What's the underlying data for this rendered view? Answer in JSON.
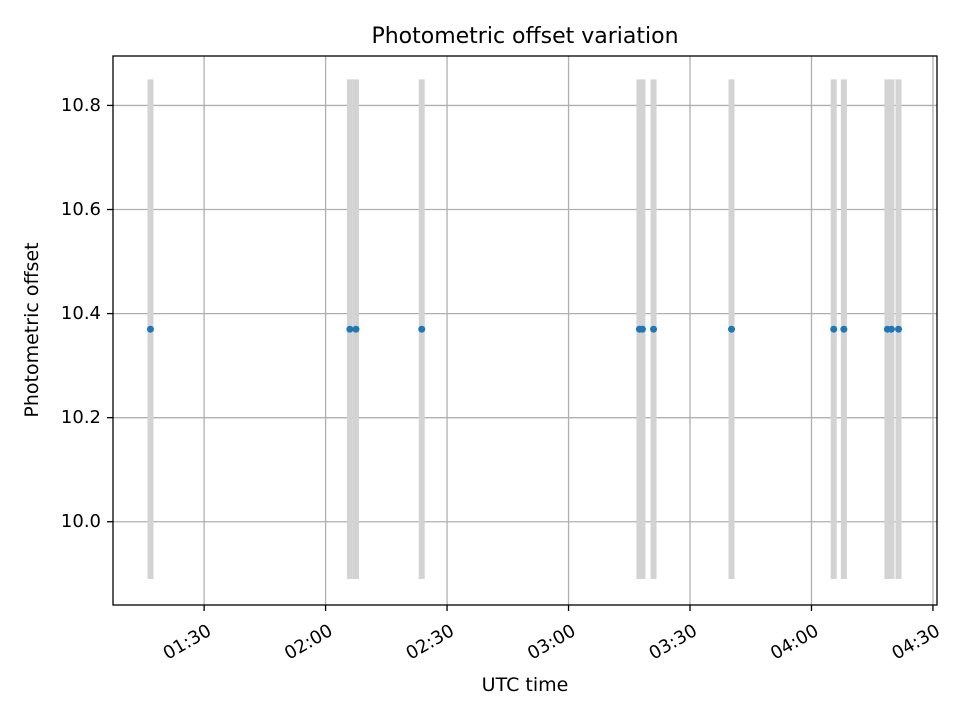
{
  "chart_data": {
    "type": "scatter",
    "title": "Photometric offset variation",
    "xlabel": "UTC time",
    "ylabel": "Photometric offset",
    "x_tick_labels": [
      "01:30",
      "02:00",
      "02:30",
      "03:00",
      "03:30",
      "04:00",
      "04:30"
    ],
    "y_tick_labels": [
      "10.0",
      "10.2",
      "10.4",
      "10.6",
      "10.8"
    ],
    "xlim": [
      "01:07:30",
      "04:31:00"
    ],
    "ylim": [
      9.84,
      10.895
    ],
    "grid": true,
    "error_bar_color": "#d3d3d3",
    "point_color": "#1f77b4",
    "points": [
      {
        "x": "01:16:45",
        "y": 10.37,
        "ylow": 9.89,
        "yhigh": 10.85
      },
      {
        "x": "02:06:00",
        "y": 10.37,
        "ylow": 9.89,
        "yhigh": 10.85
      },
      {
        "x": "02:07:30",
        "y": 10.37,
        "ylow": 9.89,
        "yhigh": 10.85
      },
      {
        "x": "02:23:45",
        "y": 10.37,
        "ylow": 9.89,
        "yhigh": 10.85
      },
      {
        "x": "03:17:30",
        "y": 10.37,
        "ylow": 9.89,
        "yhigh": 10.85
      },
      {
        "x": "03:18:15",
        "y": 10.37,
        "ylow": 9.89,
        "yhigh": 10.85
      },
      {
        "x": "03:21:00",
        "y": 10.37,
        "ylow": 9.89,
        "yhigh": 10.85
      },
      {
        "x": "03:40:15",
        "y": 10.37,
        "ylow": 9.89,
        "yhigh": 10.85
      },
      {
        "x": "04:05:30",
        "y": 10.37,
        "ylow": 9.89,
        "yhigh": 10.85
      },
      {
        "x": "04:08:00",
        "y": 10.37,
        "ylow": 9.89,
        "yhigh": 10.85
      },
      {
        "x": "04:18:45",
        "y": 10.37,
        "ylow": 9.89,
        "yhigh": 10.85
      },
      {
        "x": "04:19:45",
        "y": 10.37,
        "ylow": 9.89,
        "yhigh": 10.85
      },
      {
        "x": "04:21:30",
        "y": 10.37,
        "ylow": 9.89,
        "yhigh": 10.85
      }
    ]
  }
}
